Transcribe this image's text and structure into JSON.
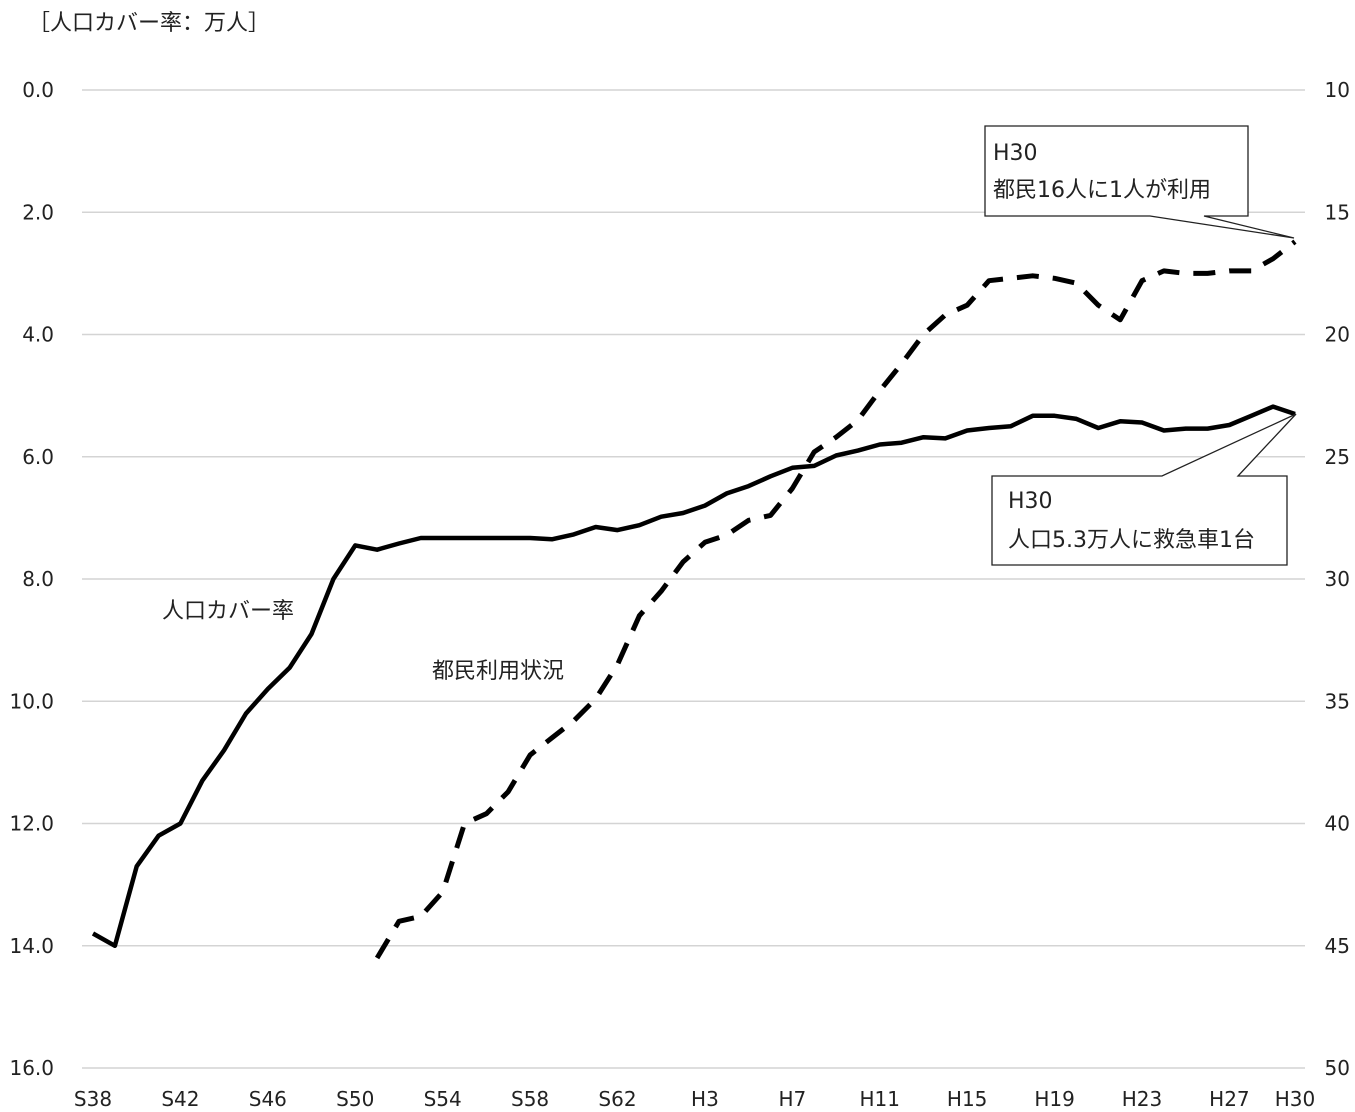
{
  "chart_data": {
    "type": "line",
    "unit_label": "［人口カバー率：万人］",
    "x": [
      "S38",
      "S39",
      "S40",
      "S41",
      "S42",
      "S43",
      "S44",
      "S45",
      "S46",
      "S47",
      "S48",
      "S49",
      "S50",
      "S51",
      "S52",
      "S53",
      "S54",
      "S55",
      "S56",
      "S57",
      "S58",
      "S59",
      "S60",
      "S61",
      "S62",
      "S63",
      "H1",
      "H2",
      "H3",
      "H4",
      "H5",
      "H6",
      "H7",
      "H8",
      "H9",
      "H10",
      "H11",
      "H12",
      "H13",
      "H14",
      "H15",
      "H16",
      "H17",
      "H18",
      "H19",
      "H20",
      "H21",
      "H22",
      "H23",
      "H24",
      "H25",
      "H26",
      "H27",
      "H28",
      "H29",
      "H30"
    ],
    "x_ticks": [
      "S38",
      "S42",
      "S46",
      "S50",
      "S54",
      "S58",
      "S62",
      "H3",
      "H7",
      "H11",
      "H15",
      "H19",
      "H23",
      "H27",
      "H30"
    ],
    "y_left": {
      "ticks": [
        "0.0",
        "2.0",
        "4.0",
        "6.0",
        "8.0",
        "10.0",
        "12.0",
        "14.0",
        "16.0"
      ],
      "min": 0,
      "max": 16,
      "inverted": true
    },
    "y_right": {
      "ticks": [
        "10",
        "15",
        "20",
        "25",
        "30",
        "35",
        "40",
        "45",
        "50"
      ],
      "min": 10,
      "max": 50,
      "inverted": true
    },
    "grid": true,
    "series": [
      {
        "name": "人口カバー率",
        "axis": "left",
        "style": "solid",
        "values": [
          13.8,
          14.0,
          12.7,
          12.2,
          12.0,
          11.3,
          10.8,
          10.2,
          9.8,
          9.45,
          8.9,
          8.0,
          7.45,
          7.52,
          7.42,
          7.33,
          7.33,
          7.33,
          7.33,
          7.33,
          7.33,
          7.35,
          7.27,
          7.15,
          7.2,
          7.12,
          6.98,
          6.92,
          6.8,
          6.6,
          6.48,
          6.32,
          6.18,
          6.15,
          5.98,
          5.9,
          5.8,
          5.77,
          5.68,
          5.7,
          5.57,
          5.53,
          5.5,
          5.33,
          5.33,
          5.38,
          5.53,
          5.42,
          5.44,
          5.57,
          5.54,
          5.54,
          5.48,
          5.33,
          5.18,
          5.3
        ]
      },
      {
        "name": "都民利用状況",
        "axis": "right",
        "style": "dashed",
        "values": [
          null,
          null,
          null,
          null,
          null,
          null,
          null,
          null,
          null,
          null,
          null,
          null,
          null,
          45.5,
          44.0,
          43.8,
          42.8,
          40.0,
          39.6,
          38.7,
          37.2,
          36.5,
          35.8,
          34.9,
          33.5,
          31.5,
          30.5,
          29.3,
          28.5,
          28.2,
          27.6,
          27.4,
          26.3,
          24.8,
          24.2,
          23.5,
          22.3,
          21.2,
          20.0,
          19.2,
          18.8,
          17.8,
          17.7,
          17.6,
          17.7,
          17.9,
          18.8,
          19.4,
          17.8,
          17.4,
          17.5,
          17.5,
          17.4,
          17.4,
          16.9,
          16.2
        ]
      }
    ],
    "labels": {
      "solid_line": "人口カバー率",
      "dashed_line": "都民利用状況"
    },
    "annotations": [
      {
        "line1": "H30",
        "line2": "都民16人に1人が利用"
      },
      {
        "line1": "H30",
        "line2": "人口5.3万人に救急車1台"
      }
    ]
  }
}
